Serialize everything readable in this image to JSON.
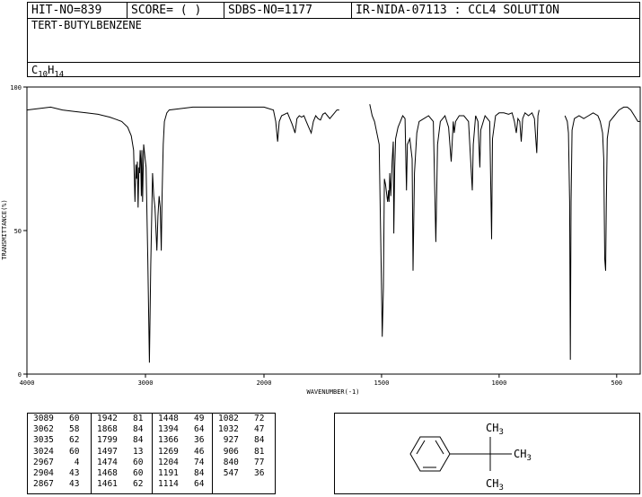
{
  "header": {
    "hit_no": "HIT-NO=839",
    "score": "SCORE=  (   )",
    "sdbs_no": "SDBS-NO=1177",
    "source": "IR-NIDA-07113 : CCL4 SOLUTION",
    "compound_name": "TERT-BUTYLBENZENE",
    "formula_c": "C",
    "formula_c_sub": "10",
    "formula_h": "H",
    "formula_h_sub": "14"
  },
  "chart_data": {
    "type": "line",
    "xlabel": "WAVENUMBER(-1)",
    "ylabel": "TRANSMITTANCE(%)",
    "xlim": [
      4000,
      400
    ],
    "ylim": [
      0,
      100
    ],
    "x_ticks": [
      4000,
      3000,
      2000,
      1500,
      1000,
      500
    ],
    "y_ticks": [
      0,
      50,
      100
    ],
    "series": [
      {
        "points": [
          [
            4000,
            92
          ],
          [
            3900,
            92.5
          ],
          [
            3800,
            93
          ],
          [
            3700,
            92
          ],
          [
            3600,
            91.5
          ],
          [
            3500,
            91
          ],
          [
            3400,
            90.5
          ],
          [
            3300,
            89.5
          ],
          [
            3200,
            88
          ],
          [
            3150,
            86
          ],
          [
            3120,
            83
          ],
          [
            3100,
            78
          ],
          [
            3089,
            60
          ],
          [
            3080,
            73
          ],
          [
            3075,
            68
          ],
          [
            3068,
            74
          ],
          [
            3062,
            58
          ],
          [
            3055,
            72
          ],
          [
            3050,
            70
          ],
          [
            3045,
            78
          ],
          [
            3040,
            75
          ],
          [
            3035,
            62
          ],
          [
            3030,
            78
          ],
          [
            3024,
            60
          ],
          [
            3015,
            80
          ],
          [
            3005,
            76
          ],
          [
            2995,
            72
          ],
          [
            2980,
            40
          ],
          [
            2967,
            4
          ],
          [
            2955,
            38
          ],
          [
            2940,
            70
          ],
          [
            2930,
            62
          ],
          [
            2920,
            58
          ],
          [
            2904,
            43
          ],
          [
            2895,
            55
          ],
          [
            2885,
            62
          ],
          [
            2875,
            58
          ],
          [
            2867,
            43
          ],
          [
            2860,
            62
          ],
          [
            2850,
            80
          ],
          [
            2840,
            88
          ],
          [
            2820,
            91
          ],
          [
            2800,
            92
          ],
          [
            2700,
            92.5
          ],
          [
            2600,
            93
          ],
          [
            2500,
            93
          ],
          [
            2400,
            93
          ],
          [
            2300,
            93
          ],
          [
            2200,
            93
          ],
          [
            2100,
            93
          ],
          [
            2000,
            93
          ],
          [
            1960,
            92
          ],
          [
            1950,
            88
          ],
          [
            1942,
            81
          ],
          [
            1935,
            88
          ],
          [
            1925,
            90
          ],
          [
            1900,
            91
          ],
          [
            1890,
            89
          ],
          [
            1880,
            87
          ],
          [
            1868,
            84
          ],
          [
            1860,
            89
          ],
          [
            1850,
            90
          ],
          [
            1840,
            89.5
          ],
          [
            1830,
            90
          ],
          [
            1820,
            88
          ],
          [
            1810,
            86
          ],
          [
            1799,
            84
          ],
          [
            1790,
            88
          ],
          [
            1780,
            90
          ],
          [
            1770,
            89
          ],
          [
            1760,
            88.5
          ],
          [
            1750,
            90.5
          ],
          [
            1740,
            91
          ],
          [
            1730,
            90
          ],
          [
            1720,
            89
          ],
          [
            1700,
            91
          ],
          [
            1690,
            92
          ],
          [
            1680,
            92
          ]
        ],
        "gap": true
      },
      {
        "points": [
          [
            1550,
            94
          ],
          [
            1540,
            90
          ],
          [
            1530,
            88
          ],
          [
            1520,
            84
          ],
          [
            1510,
            80
          ],
          [
            1500,
            30
          ],
          [
            1497,
            13
          ],
          [
            1492,
            30
          ],
          [
            1488,
            68
          ],
          [
            1483,
            66
          ],
          [
            1474,
            60
          ],
          [
            1470,
            64
          ],
          [
            1468,
            60
          ],
          [
            1465,
            70
          ],
          [
            1461,
            62
          ],
          [
            1455,
            74
          ],
          [
            1450,
            81
          ],
          [
            1448,
            49
          ],
          [
            1444,
            72
          ],
          [
            1440,
            82
          ],
          [
            1430,
            86
          ],
          [
            1420,
            88
          ],
          [
            1410,
            90
          ],
          [
            1400,
            89
          ],
          [
            1394,
            64
          ],
          [
            1390,
            80
          ],
          [
            1380,
            82
          ],
          [
            1370,
            75
          ],
          [
            1366,
            36
          ],
          [
            1360,
            70
          ],
          [
            1350,
            84
          ],
          [
            1340,
            88
          ],
          [
            1320,
            89
          ],
          [
            1300,
            90
          ],
          [
            1280,
            88
          ],
          [
            1269,
            46
          ],
          [
            1262,
            80
          ],
          [
            1250,
            88
          ],
          [
            1230,
            90
          ],
          [
            1215,
            86
          ],
          [
            1204,
            74
          ],
          [
            1200,
            80
          ],
          [
            1195,
            88
          ],
          [
            1191,
            84
          ],
          [
            1185,
            88
          ],
          [
            1170,
            90
          ],
          [
            1150,
            90
          ],
          [
            1130,
            88
          ],
          [
            1114,
            64
          ],
          [
            1110,
            80
          ],
          [
            1100,
            90
          ],
          [
            1090,
            88
          ],
          [
            1082,
            72
          ],
          [
            1078,
            85
          ],
          [
            1060,
            90
          ],
          [
            1040,
            88
          ],
          [
            1032,
            47
          ],
          [
            1028,
            82
          ],
          [
            1015,
            90
          ],
          [
            1000,
            91
          ],
          [
            980,
            91
          ],
          [
            960,
            90.5
          ],
          [
            945,
            91
          ],
          [
            935,
            88
          ],
          [
            927,
            84
          ],
          [
            920,
            89
          ],
          [
            912,
            88
          ],
          [
            906,
            81
          ],
          [
            900,
            89
          ],
          [
            890,
            91
          ],
          [
            875,
            90
          ],
          [
            860,
            91
          ],
          [
            850,
            89
          ],
          [
            840,
            77
          ],
          [
            835,
            90
          ],
          [
            830,
            92
          ]
        ],
        "gap": true
      },
      {
        "points": [
          [
            720,
            90
          ],
          [
            710,
            88
          ],
          [
            705,
            84
          ],
          [
            700,
            60
          ],
          [
            697,
            5
          ],
          [
            694,
            60
          ],
          [
            690,
            85
          ],
          [
            680,
            89
          ],
          [
            660,
            90
          ],
          [
            640,
            89
          ],
          [
            620,
            90
          ],
          [
            600,
            91
          ],
          [
            580,
            90
          ],
          [
            570,
            88
          ],
          [
            560,
            84
          ],
          [
            555,
            75
          ],
          [
            551,
            40
          ],
          [
            547,
            36
          ],
          [
            544,
            60
          ],
          [
            540,
            82
          ],
          [
            530,
            88
          ],
          [
            510,
            90
          ],
          [
            490,
            92
          ],
          [
            470,
            93
          ],
          [
            455,
            93
          ],
          [
            440,
            92
          ],
          [
            425,
            90
          ],
          [
            410,
            88
          ],
          [
            400,
            88
          ]
        ]
      }
    ],
    "peak_table": [
      [
        [
          "3089",
          "60"
        ],
        [
          "3062",
          "58"
        ],
        [
          "3035",
          "62"
        ],
        [
          "3024",
          "60"
        ],
        [
          "2967",
          "4"
        ],
        [
          "2904",
          "43"
        ],
        [
          "2867",
          "43"
        ]
      ],
      [
        [
          "1942",
          "81"
        ],
        [
          "1868",
          "84"
        ],
        [
          "1799",
          "84"
        ],
        [
          "1497",
          "13"
        ],
        [
          "1474",
          "60"
        ],
        [
          "1468",
          "60"
        ],
        [
          "1461",
          "62"
        ]
      ],
      [
        [
          "1448",
          "49"
        ],
        [
          "1394",
          "64"
        ],
        [
          "1366",
          "36"
        ],
        [
          "1269",
          "46"
        ],
        [
          "1204",
          "74"
        ],
        [
          "1191",
          "84"
        ],
        [
          "1114",
          "64"
        ]
      ],
      [
        [
          "1082",
          "72"
        ],
        [
          "1032",
          "47"
        ],
        [
          "927",
          "84"
        ],
        [
          "906",
          "81"
        ],
        [
          "840",
          "77"
        ],
        [
          "547",
          "36"
        ]
      ]
    ]
  },
  "structure": {
    "ch3_top": "CH",
    "ch3_right": "CH",
    "ch3_bottom": "CH",
    "sub3": "3"
  }
}
